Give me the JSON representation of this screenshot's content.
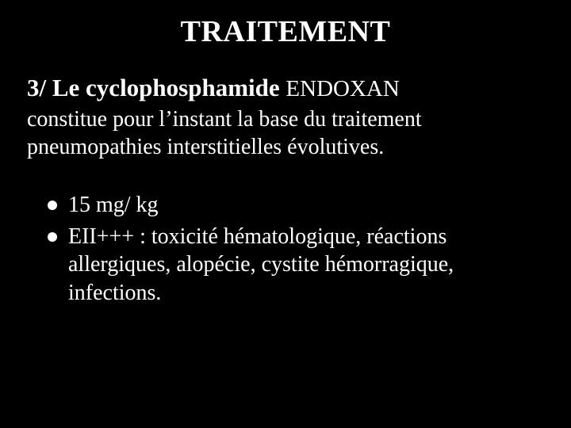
{
  "slide": {
    "title": "TRAITEMENT",
    "subtitle_lead": "3/ Le cyclophosphamide ",
    "subtitle_drug": "ENDOXAN",
    "body": "constitue pour l’instant la base du traitement pneumopathies interstitielles évolutives.",
    "bullets": [
      "15 mg/ kg",
      "EII+++ : toxicité hématologique, réactions allergiques, alopécie, cystite hémorragique, infections."
    ]
  },
  "style": {
    "background_color": "#000000",
    "text_color": "#ffffff",
    "bullet_color": "#ffffff",
    "title_fontsize_pt": 29,
    "subtitle_fontsize_pt": 23,
    "body_fontsize_pt": 21,
    "font_family": "Times New Roman"
  }
}
